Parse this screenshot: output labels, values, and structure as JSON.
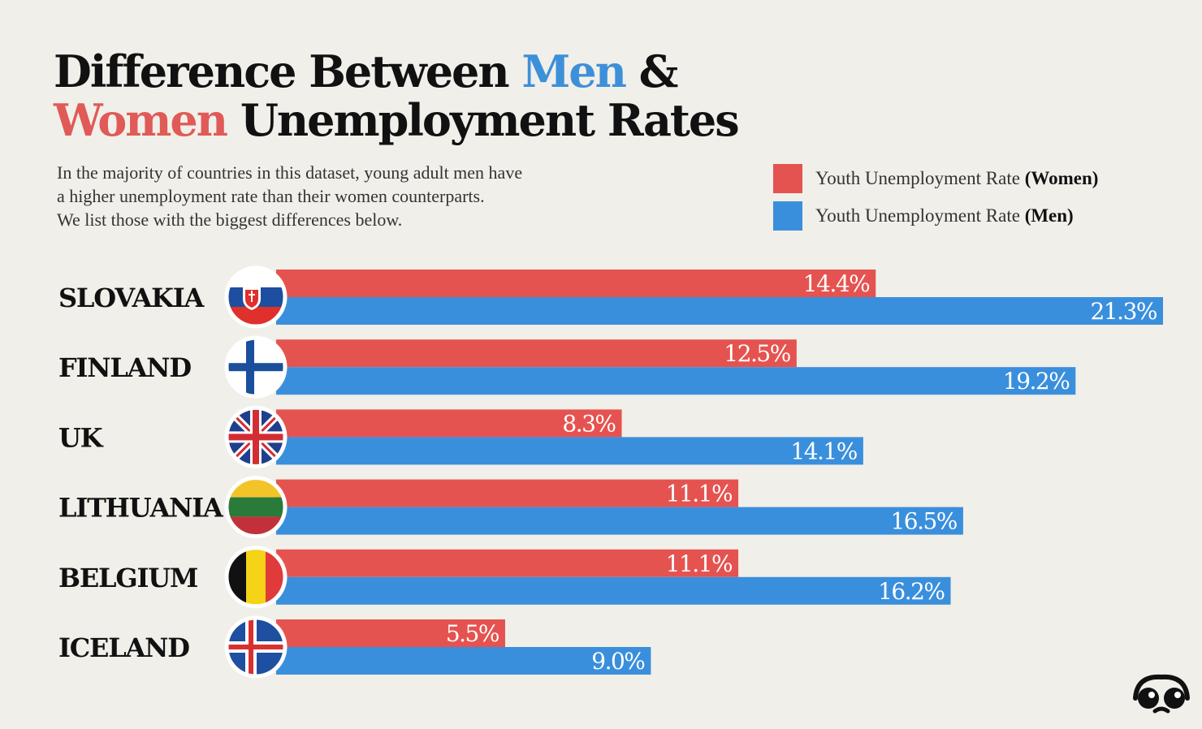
{
  "title": {
    "part1": "Difference Between ",
    "men": "Men",
    "part2": " &",
    "women": "Women",
    "part3": " Unemployment Rates"
  },
  "subtitle": {
    "line1": "In the majority of countries in this dataset, young adult men have",
    "line2": "a higher unemployment rate than their women counterparts.",
    "line3": "We list those with the biggest differences below."
  },
  "legend": {
    "women_prefix": "Youth Unemployment Rate ",
    "women_strong": "(Women)",
    "men_prefix": "Youth Unemployment Rate ",
    "men_strong": "(Men)"
  },
  "colors": {
    "women": "#e55350",
    "men": "#3a8fdc",
    "background": "#f1efe9"
  },
  "chart_data": {
    "type": "bar",
    "orientation": "horizontal",
    "categories": [
      "SLOVAKIA",
      "FINLAND",
      "UK",
      "LITHUANIA",
      "BELGIUM",
      "ICELAND"
    ],
    "flags": [
      "slovakia-flag-icon",
      "finland-flag-icon",
      "uk-flag-icon",
      "lithuania-flag-icon",
      "belgium-flag-icon",
      "iceland-flag-icon"
    ],
    "series": [
      {
        "name": "Youth Unemployment Rate (Women)",
        "values": [
          14.4,
          12.5,
          8.3,
          11.1,
          11.1,
          5.5
        ],
        "labels": [
          "14.4%",
          "12.5%",
          "8.3%",
          "11.1%",
          "11.1%",
          "5.5%"
        ]
      },
      {
        "name": "Youth Unemployment Rate (Men)",
        "values": [
          21.3,
          19.2,
          14.1,
          16.5,
          16.2,
          9.0
        ],
        "labels": [
          "21.3%",
          "19.2%",
          "14.1%",
          "16.5%",
          "16.2%",
          "9.0%"
        ]
      }
    ],
    "xlim": [
      0,
      21.3
    ],
    "grid": false,
    "legend_position": "top-right"
  }
}
